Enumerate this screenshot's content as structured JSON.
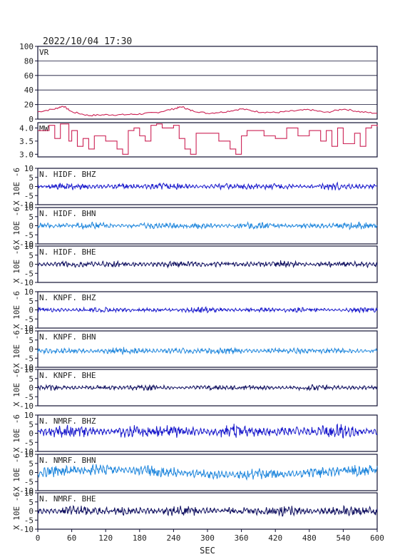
{
  "header": {
    "timestamp": "2022/10/04  17:30"
  },
  "chart_data": {
    "type": "line",
    "xlabel": "SEC",
    "xlim": [
      0,
      600
    ],
    "xticks": [
      "0",
      "60",
      "120",
      "180",
      "240",
      "300",
      "360",
      "420",
      "480",
      "540",
      "600"
    ],
    "amp_axis_label": "X 10E -6",
    "panels": [
      {
        "label": "VR",
        "kind": "vr",
        "color": "#cc2255",
        "ylim": [
          0,
          100
        ],
        "yticks": [
          "0",
          "20",
          "40",
          "60",
          "80",
          "100"
        ],
        "grid": true,
        "x": [
          0,
          30,
          45,
          60,
          90,
          120,
          150,
          180,
          210,
          240,
          255,
          270,
          300,
          330,
          360,
          390,
          420,
          450,
          480,
          510,
          540,
          570,
          600
        ],
        "values": [
          10,
          14,
          18,
          10,
          5,
          6,
          6,
          7,
          9,
          14,
          17,
          12,
          8,
          10,
          14,
          10,
          9,
          11,
          13,
          9,
          14,
          10,
          8
        ]
      },
      {
        "label": "MW",
        "kind": "mw",
        "color": "#cc2255",
        "ylim": [
          2.9,
          4.2
        ],
        "yticks": [
          "3.0",
          "3.5",
          "4.0"
        ],
        "grid": false,
        "x": [
          0,
          20,
          30,
          40,
          55,
          60,
          70,
          80,
          90,
          100,
          120,
          140,
          150,
          160,
          170,
          180,
          190,
          200,
          210,
          220,
          240,
          250,
          260,
          270,
          280,
          300,
          320,
          340,
          350,
          360,
          370,
          380,
          400,
          420,
          440,
          460,
          480,
          500,
          510,
          520,
          530,
          540,
          560,
          570,
          580,
          590,
          600
        ],
        "values": [
          3.9,
          4.1,
          3.6,
          4.15,
          3.5,
          3.9,
          3.3,
          3.6,
          3.2,
          3.7,
          3.5,
          3.2,
          3.0,
          3.9,
          4.0,
          3.7,
          3.5,
          4.1,
          4.15,
          4.0,
          4.1,
          3.6,
          3.2,
          3.0,
          3.8,
          3.8,
          3.5,
          3.2,
          3.0,
          3.7,
          3.9,
          3.9,
          3.7,
          3.6,
          4.0,
          3.7,
          3.9,
          3.5,
          3.9,
          3.3,
          4.0,
          3.4,
          3.8,
          3.3,
          4.0,
          4.1,
          4.05
        ]
      },
      {
        "label": "N. HIDF. BHZ",
        "kind": "wave",
        "color": "#1a1acc",
        "ylim": [
          -10,
          10
        ],
        "yticks": [
          "-10",
          "-5",
          "0",
          "5",
          "10"
        ],
        "amplitude": 1.0,
        "offset": 0
      },
      {
        "label": "N. HIDF. BHN",
        "kind": "wave",
        "color": "#2288dd",
        "ylim": [
          -10,
          10
        ],
        "yticks": [
          "-10",
          "-5",
          "0",
          "5",
          "10"
        ],
        "amplitude": 1.0,
        "offset": 0
      },
      {
        "label": "N. HIDF. BHE",
        "kind": "wave",
        "color": "#101060",
        "ylim": [
          -10,
          10
        ],
        "yticks": [
          "-10",
          "-5",
          "0",
          "5",
          "10"
        ],
        "amplitude": 1.0,
        "offset": 0
      },
      {
        "label": "N. KNPF. BHZ",
        "kind": "wave",
        "color": "#1a1acc",
        "ylim": [
          -10,
          10
        ],
        "yticks": [
          "-10",
          "-5",
          "0",
          "5",
          "10"
        ],
        "amplitude": 0.8,
        "offset": 0
      },
      {
        "label": "N. KNPF. BHN",
        "kind": "wave",
        "color": "#2288dd",
        "ylim": [
          -10,
          10
        ],
        "yticks": [
          "-10",
          "-5",
          "0",
          "5",
          "10"
        ],
        "amplitude": 1.0,
        "offset": -1
      },
      {
        "label": "N. KNPF. BHE",
        "kind": "wave",
        "color": "#101060",
        "ylim": [
          -10,
          10
        ],
        "yticks": [
          "-10",
          "-5",
          "0",
          "5",
          "10"
        ],
        "amplitude": 0.8,
        "offset": 0
      },
      {
        "label": "N. NMRF. BHZ",
        "kind": "wave",
        "color": "#1a1acc",
        "ylim": [
          -10,
          10
        ],
        "yticks": [
          "-10",
          "-5",
          "0",
          "5",
          "10"
        ],
        "amplitude": 2.0,
        "offset": 1
      },
      {
        "label": "N. NMRF. BHN",
        "kind": "wave",
        "color": "#2288dd",
        "ylim": [
          -10,
          10
        ],
        "yticks": [
          "-10",
          "-5",
          "0",
          "5",
          "10"
        ],
        "amplitude": 1.8,
        "offset": 0
      },
      {
        "label": "N. NMRF. BHE",
        "kind": "wave",
        "color": "#101060",
        "ylim": [
          -10,
          10
        ],
        "yticks": [
          "-10",
          "-5",
          "0",
          "5",
          "10"
        ],
        "amplitude": 1.5,
        "offset": 0
      }
    ]
  }
}
